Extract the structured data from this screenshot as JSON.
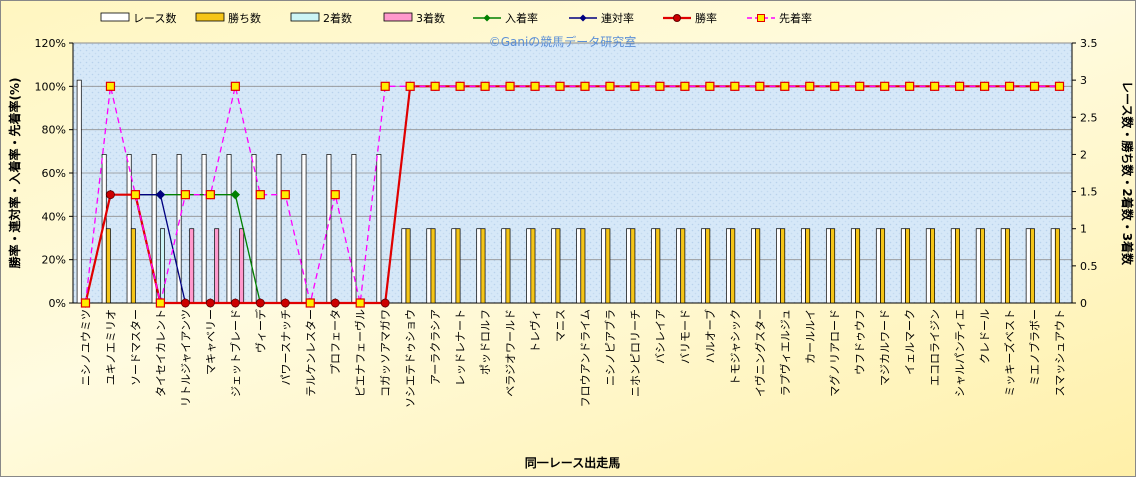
{
  "chart_data": {
    "type": "bar",
    "title": "",
    "watermark": "©Ganiの競馬データ研究室",
    "xlabel": "同一レース出走馬",
    "ylabel_left": "勝率・連対率・入着率・先着率(%)",
    "ylabel_right": "レース数・勝ち数・2着数・3着数",
    "ylim_left": [
      0,
      120
    ],
    "ylim_right": [
      0,
      3.5
    ],
    "left_ticks": [
      "0%",
      "20%",
      "40%",
      "60%",
      "80%",
      "100%",
      "120%"
    ],
    "right_ticks": [
      "0",
      "0.5",
      "1",
      "1.5",
      "2",
      "2.5",
      "3",
      "3.5"
    ],
    "legend_position": "top",
    "categories": [
      "ニシノユウミツ",
      "ユキノエミリオ",
      "ソードマスター",
      "タイセイカレント",
      "リトルジャイアンツ",
      "マキャベリー",
      "ジェットブレード",
      "ヴィーデ",
      "パワースナッチ",
      "テルケンレスター",
      "プロフェータ",
      "ピエナフェーヴル",
      "コガッソアマガワ",
      "ソシエテドゥショウ",
      "アーラクラシア",
      "レッドレナート",
      "ポッドロルフ",
      "ベラジオワールド",
      "トレヴィ",
      "マニス",
      "フロウアンドライム",
      "ニシノピアブラ",
      "ニホンピロリーチ",
      "バシレイア",
      "バリモード",
      "ハルオーブ",
      "トモジャシック",
      "イヴニングスター",
      "ラプヴィエルジュ",
      "カールルイ",
      "マグノリアロード",
      "ウフドゥウフ",
      "マジカルワード",
      "イェルマーク",
      "エコロライジン",
      "シャルパンティエ",
      "クレドール",
      "ミッキーズベスト",
      "ミエノブラボー",
      "スマッシュアウト"
    ],
    "series": [
      {
        "name": "レース数",
        "axis": "right",
        "kind": "bar",
        "color": "#ffffff",
        "values": [
          3,
          2,
          2,
          2,
          2,
          2,
          2,
          2,
          2,
          2,
          2,
          2,
          2,
          1,
          1,
          1,
          1,
          1,
          1,
          1,
          1,
          1,
          1,
          1,
          1,
          1,
          1,
          1,
          1,
          1,
          1,
          1,
          1,
          1,
          1,
          1,
          1,
          1,
          1,
          1
        ]
      },
      {
        "name": "勝ち数",
        "axis": "right",
        "kind": "bar",
        "color": "#f5c518",
        "values": [
          0,
          1,
          1,
          0,
          0,
          0,
          0,
          0,
          0,
          0,
          0,
          0,
          0,
          1,
          1,
          1,
          1,
          1,
          1,
          1,
          1,
          1,
          1,
          1,
          1,
          1,
          1,
          1,
          1,
          1,
          1,
          1,
          1,
          1,
          1,
          1,
          1,
          1,
          1,
          1
        ]
      },
      {
        "name": "2着数",
        "axis": "right",
        "kind": "bar",
        "color": "#ccf5f5",
        "values": [
          0,
          0,
          0,
          1,
          0,
          0,
          0,
          0,
          0,
          0,
          0,
          0,
          0,
          0,
          0,
          0,
          0,
          0,
          0,
          0,
          0,
          0,
          0,
          0,
          0,
          0,
          0,
          0,
          0,
          0,
          0,
          0,
          0,
          0,
          0,
          0,
          0,
          0,
          0,
          0
        ]
      },
      {
        "name": "3着数",
        "axis": "right",
        "kind": "bar",
        "color": "#ff99cc",
        "values": [
          0,
          0,
          0,
          0,
          1,
          1,
          1,
          0,
          0,
          0,
          0,
          0,
          0,
          0,
          0,
          0,
          0,
          0,
          0,
          0,
          0,
          0,
          0,
          0,
          0,
          0,
          0,
          0,
          0,
          0,
          0,
          0,
          0,
          0,
          0,
          0,
          0,
          0,
          0,
          0
        ]
      },
      {
        "name": "入着率",
        "axis": "left",
        "kind": "line",
        "color": "#008000",
        "marker": "diamond",
        "values": [
          0,
          50,
          50,
          50,
          50,
          50,
          50,
          0,
          0,
          0,
          0,
          0,
          0,
          100,
          100,
          100,
          100,
          100,
          100,
          100,
          100,
          100,
          100,
          100,
          100,
          100,
          100,
          100,
          100,
          100,
          100,
          100,
          100,
          100,
          100,
          100,
          100,
          100,
          100,
          100
        ]
      },
      {
        "name": "連対率",
        "axis": "left",
        "kind": "line",
        "color": "#000080",
        "marker": "diamond",
        "values": [
          0,
          50,
          50,
          50,
          0,
          0,
          0,
          0,
          0,
          0,
          0,
          0,
          0,
          100,
          100,
          100,
          100,
          100,
          100,
          100,
          100,
          100,
          100,
          100,
          100,
          100,
          100,
          100,
          100,
          100,
          100,
          100,
          100,
          100,
          100,
          100,
          100,
          100,
          100,
          100
        ]
      },
      {
        "name": "勝率",
        "axis": "left",
        "kind": "line",
        "color": "#e00000",
        "marker": "circle",
        "values": [
          0,
          50,
          50,
          0,
          0,
          0,
          0,
          0,
          0,
          0,
          0,
          0,
          0,
          100,
          100,
          100,
          100,
          100,
          100,
          100,
          100,
          100,
          100,
          100,
          100,
          100,
          100,
          100,
          100,
          100,
          100,
          100,
          100,
          100,
          100,
          100,
          100,
          100,
          100,
          100
        ]
      },
      {
        "name": "先着率",
        "axis": "left",
        "kind": "line",
        "color": "#ff00ff",
        "dashed": true,
        "marker": "square",
        "values": [
          0,
          100,
          50,
          0,
          50,
          50,
          100,
          50,
          50,
          0,
          50,
          0,
          100,
          100,
          100,
          100,
          100,
          100,
          100,
          100,
          100,
          100,
          100,
          100,
          100,
          100,
          100,
          100,
          100,
          100,
          100,
          100,
          100,
          100,
          100,
          100,
          100,
          100,
          100,
          100
        ]
      }
    ]
  }
}
